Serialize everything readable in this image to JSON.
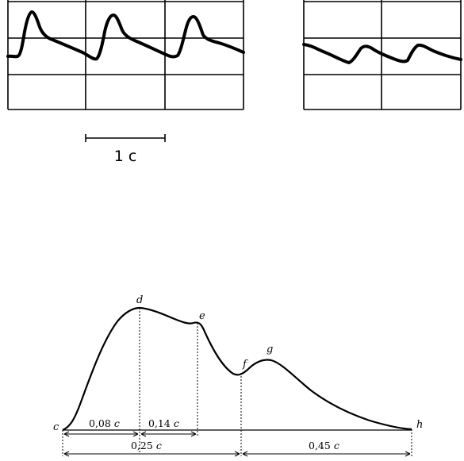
{
  "top_panels": {
    "scale_bar_label": "1 с",
    "panel_count": 2
  },
  "pulse_curve": {
    "points": {
      "c": "c",
      "d": "d",
      "e": "e",
      "f": "f",
      "g": "g",
      "h": "h"
    },
    "intervals": {
      "cd": "0,08",
      "de": "0,14",
      "cf": "0,25",
      "fh": "0,45",
      "unit": "с"
    }
  }
}
